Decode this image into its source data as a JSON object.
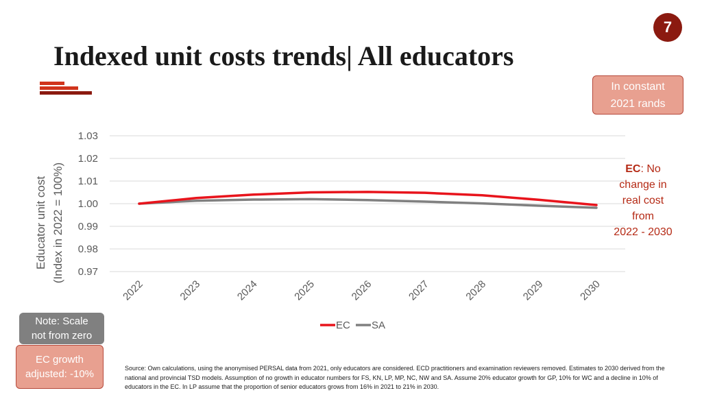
{
  "page_number": "7",
  "title": "Indexed unit costs trends| All educators",
  "notes": {
    "constant_line1": "In constant",
    "constant_line2": "2021 rands",
    "scale_line1": "Note: Scale",
    "scale_line2": "not from zero",
    "growth_line1": "EC growth",
    "growth_line2": "adjusted: -10%",
    "ec_bold": "EC",
    "ec_line1_rest": ": No",
    "ec_line2": "change in",
    "ec_line3": "real cost",
    "ec_line4": "from",
    "ec_line5": "2022 - 2030"
  },
  "source": "Source: Own calculations, using the anonymised PERSAL data from 2021, only educators are considered. ECD practitioners and examination reviewers removed. Estimates to 2030 derived from the national and provincial TSD models. Assumption of no growth in educator numbers for FS, KN, LP, MP, NC, NW and SA. Assume 20% educator growth for GP, 10% for WC and a decline in 10% of educators in the EC. In LP assume that the proportion of senior educators grows from 16% in 2021 to 21% in 2030.",
  "colors": {
    "ec": "#e8141c",
    "sa": "#808080",
    "accent": "#8b1a10",
    "grid": "#d9d9d9"
  },
  "chart_data": {
    "type": "line",
    "title": "",
    "xlabel": "",
    "ylabel_line1": "Educator unit cost",
    "ylabel_line2": "(Index in 2022 = 100%)",
    "categories": [
      "2022",
      "2023",
      "2024",
      "2025",
      "2026",
      "2027",
      "2028",
      "2029",
      "2030"
    ],
    "y_ticks": [
      "0.97",
      "0.98",
      "0.99",
      "1.00",
      "1.01",
      "1.02",
      "1.03"
    ],
    "ylim": [
      0.97,
      1.03
    ],
    "grid": true,
    "legend_position": "bottom",
    "series": [
      {
        "name": "EC",
        "values": [
          1.0,
          1.0025,
          1.004,
          1.005,
          1.0052,
          1.0048,
          1.0037,
          1.0017,
          0.9994
        ]
      },
      {
        "name": "SA",
        "values": [
          1.0,
          1.0013,
          1.0018,
          1.002,
          1.0016,
          1.0009,
          1.0001,
          0.9991,
          0.9982
        ]
      }
    ]
  }
}
